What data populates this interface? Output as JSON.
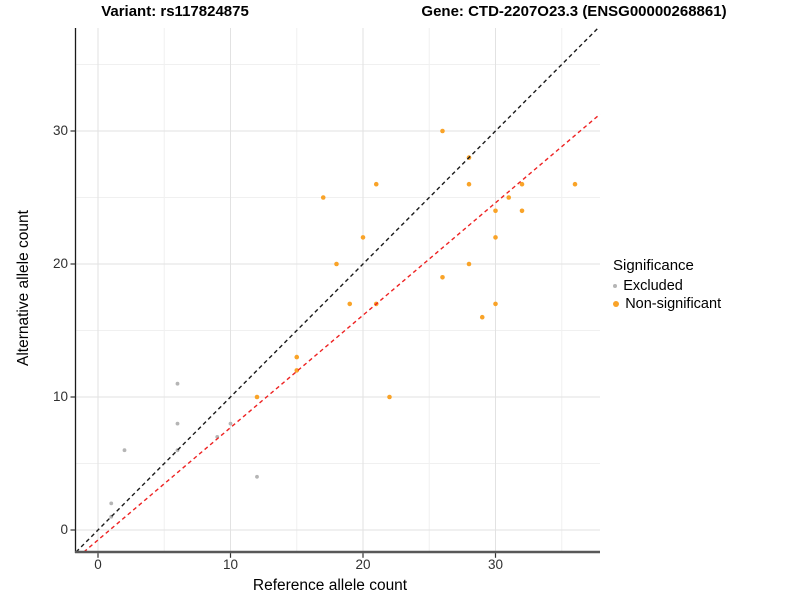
{
  "titles": {
    "left": "Variant: rs117824875",
    "right": "Gene: CTD-2207O23.3 (ENSG00000268861)"
  },
  "chart_data": {
    "type": "scatter",
    "xlabel": "Reference allele count",
    "ylabel": "Alternative allele count",
    "x_ticks": [
      0,
      10,
      20,
      30
    ],
    "y_ticks": [
      0,
      10,
      20,
      30
    ],
    "xlim": [
      -1.7,
      37.9
    ],
    "ylim": [
      -1.65,
      37.7
    ],
    "grid": {
      "major": [
        0,
        10,
        20,
        30
      ],
      "minor": [
        5,
        15,
        25,
        35
      ]
    },
    "colors": {
      "grid_major": "#e2e2e2",
      "grid_minor": "#f0f0f0",
      "axis_line_left": "#1a1a1a",
      "axis_line_bottom": "#585858",
      "tick_mark": "#333333"
    },
    "legend": {
      "title": "Significance",
      "position": "right",
      "items": [
        {
          "label": "Excluded",
          "color": "#b5b5b5",
          "swatch_radius": 2.1
        },
        {
          "label": "Non-significant",
          "color": "#f9a328",
          "swatch_radius": 3.1
        }
      ]
    },
    "series": [
      {
        "name": "Excluded",
        "color": "#b5b5b5",
        "marker_radius": 1.9,
        "points": [
          [
            1,
            1
          ],
          [
            1,
            2
          ],
          [
            2,
            6
          ],
          [
            6,
            6
          ],
          [
            6,
            8
          ],
          [
            6,
            11
          ],
          [
            9,
            7
          ],
          [
            10,
            8
          ],
          [
            12,
            4
          ]
        ]
      },
      {
        "name": "Non-significant",
        "color": "#f9a328",
        "marker_radius": 2.3,
        "points": [
          [
            12,
            10
          ],
          [
            15,
            12
          ],
          [
            15,
            13
          ],
          [
            17,
            25
          ],
          [
            18,
            20
          ],
          [
            19,
            17
          ],
          [
            20,
            22
          ],
          [
            21,
            17
          ],
          [
            21,
            26
          ],
          [
            22,
            10
          ],
          [
            26,
            19
          ],
          [
            26,
            30
          ],
          [
            28,
            20
          ],
          [
            28,
            26
          ],
          [
            28,
            28
          ],
          [
            29,
            16
          ],
          [
            30,
            17
          ],
          [
            30,
            22
          ],
          [
            30,
            24
          ],
          [
            31,
            25
          ],
          [
            32,
            24
          ],
          [
            32,
            26
          ],
          [
            36,
            26
          ]
        ]
      }
    ],
    "lines": [
      {
        "name": "identity-line",
        "style": "dashed",
        "color": "#1a1a1a",
        "width": 1.4,
        "slope": 1,
        "intercept": 0
      },
      {
        "name": "fit-line",
        "style": "dashed",
        "color": "#ee2222",
        "width": 1.4,
        "slope": 0.845,
        "intercept": -0.75
      }
    ]
  }
}
